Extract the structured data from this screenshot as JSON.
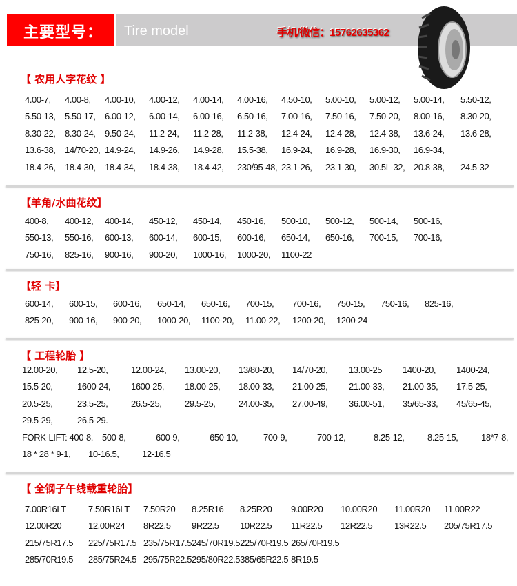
{
  "header": {
    "title_cn": "主要型号：",
    "title_en": "Tire model",
    "contact": "手机/微信：15762635362",
    "product_image": "tire-icon"
  },
  "sections": [
    {
      "title": "【 农用人字花纹 】",
      "rows": [
        [
          "4.00-7,",
          "4.00-8,",
          "4.00-10,",
          "4.00-12,",
          "4.00-14,",
          "4.00-16,",
          "4.50-10,",
          "5.00-10,",
          "5.00-12,",
          "5.00-14,",
          "5.50-12,"
        ],
        [
          "5.50-13,",
          "5.50-17,",
          "6.00-12,",
          "6.00-14,",
          "6.00-16,",
          "6.50-16,",
          "7.00-16,",
          "7.50-16,",
          "7.50-20,",
          "8.00-16,",
          "8.30-20,"
        ],
        [
          "8.30-22,",
          "8.30-24,",
          "9.50-24,",
          "11.2-24,",
          "11.2-28,",
          "11.2-38,",
          "12.4-24,",
          "12.4-28,",
          "12.4-38,",
          "13.6-24,",
          "13.6-28,"
        ],
        [
          "13.6-38,",
          "14/70-20,",
          "14.9-24,",
          "14.9-26,",
          "14.9-28,",
          "15.5-38,",
          "16.9-24,",
          "16.9-28,",
          "16.9-30,",
          "16.9-34,"
        ],
        [
          "18.4-26,",
          "18.4-30,",
          "18.4-34,",
          "18.4-38,",
          "18.4-42,",
          "230/95-48,",
          "23.1-26,",
          "23.1-30,",
          "30.5L-32,",
          "20.8-38,",
          "24.5-32"
        ]
      ]
    },
    {
      "title": "【羊角/水曲花纹】",
      "rows": [
        [
          "400-8,",
          "400-12,",
          "400-14,",
          "450-12,",
          "450-14,",
          "450-16,",
          "500-10,",
          "500-12,",
          "500-14,",
          "500-16,"
        ],
        [
          "550-13,",
          "550-16,",
          "600-13,",
          "600-14,",
          "600-15,",
          "600-16,",
          "650-14,",
          "650-16,",
          "700-15,",
          "700-16,"
        ],
        [
          "750-16,",
          "825-16,",
          "900-16,",
          "900-20,",
          "1000-16,",
          "1000-20,",
          "1100-22"
        ]
      ]
    },
    {
      "title": "【轻  卡】",
      "rows": [
        [
          "600-14,",
          "600-15,",
          "600-16,",
          "650-14,",
          "650-16,",
          "700-15,",
          "700-16,",
          "750-15,",
          "750-16,",
          "825-16,"
        ],
        [
          "825-20,",
          "900-16,",
          "900-20,",
          "1000-20,",
          "1100-20,",
          "11.00-22,",
          "1200-20,",
          "1200-24"
        ]
      ]
    },
    {
      "title": "【 工程轮胎 】",
      "rows": [
        [
          "12.00-20,",
          "12.5-20,",
          "12.00-24,",
          "13.00-20,",
          "13/80-20,",
          "14/70-20,",
          "13.00-25",
          "1400-20,",
          "1400-24,"
        ],
        [
          "15.5-20,",
          "1600-24,",
          "1600-25,",
          "18.00-25,",
          "18.00-33,",
          "21.00-25,",
          "21.00-33,",
          "21.00-35,",
          "17.5-25,"
        ],
        [
          "20.5-25,",
          "23.5-25,",
          "26.5-25,",
          "29.5-25,",
          "24.00-35,",
          "27.00-49,",
          "36.00-51,",
          "35/65-33,",
          "45/65-45,"
        ],
        [
          "29.5-29,",
          "26.5-29."
        ],
        [
          "FORK-LIFT: 400-8,",
          "500-8,",
          "600-9,",
          "650-10,",
          "700-9,",
          "700-12,",
          "8.25-12,",
          "8.25-15,",
          "18*7-8,"
        ],
        [
          "18 * 28 * 9-1,",
          "10-16.5,",
          "12-16.5"
        ]
      ]
    },
    {
      "title": "【 全钢子午线载重轮胎】",
      "rows": [
        [
          "7.00R16LT",
          "7.50R16LT",
          "7.50R20",
          "8.25R16",
          "8.25R20",
          "9.00R20",
          "10.00R20",
          "11.00R20",
          "11.00R22"
        ],
        [
          "12.00R20",
          "12.00R24",
          "8R22.5",
          "9R22.5",
          "10R22.5",
          "11R22.5",
          "12R22.5",
          "13R22.5",
          "205/75R17.5"
        ],
        [
          "215/75R17.5",
          "225/75R17.5",
          "235/75R17.5",
          "245/70R19.5",
          "225/70R19.5",
          "265/70R19.5"
        ],
        [
          "285/70R19.5",
          "285/75R24.5",
          "295/75R22.5",
          "295/80R22.5",
          "385/65R22.5",
          "8R19.5"
        ]
      ]
    }
  ]
}
